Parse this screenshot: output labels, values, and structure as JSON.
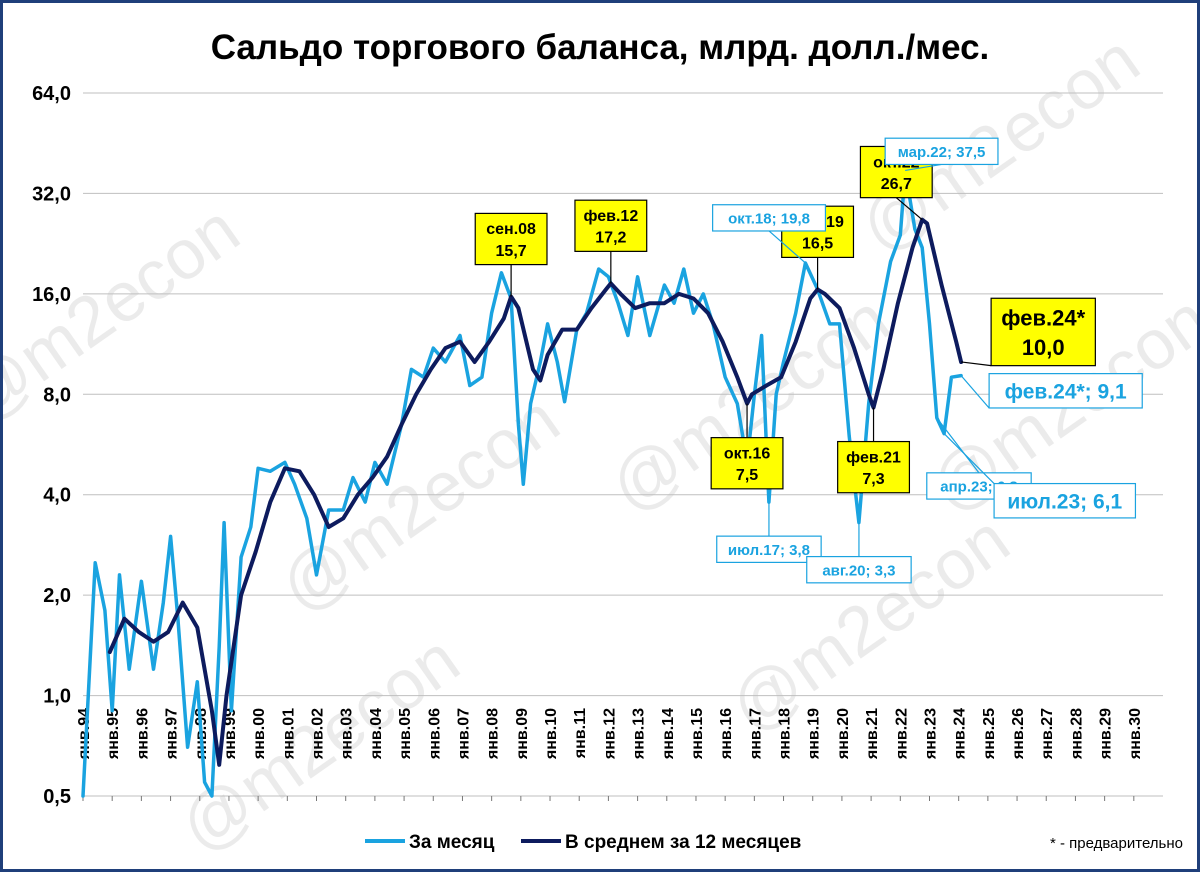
{
  "chart_data": {
    "type": "line",
    "title": "Сальдо торгового баланса, млрд. долл./мес.",
    "y_scale": "log2",
    "ylim": [
      0.5,
      64.0
    ],
    "y_ticks": [
      "0,5",
      "1,0",
      "2,0",
      "4,0",
      "8,0",
      "16,0",
      "32,0",
      "64,0"
    ],
    "x_ticks": [
      "янв.94",
      "янв.95",
      "янв.96",
      "янв.97",
      "янв.98",
      "янв.99",
      "янв.00",
      "янв.01",
      "янв.02",
      "янв.03",
      "янв.04",
      "янв.05",
      "янв.06",
      "янв.07",
      "янв.08",
      "янв.09",
      "янв.10",
      "янв.11",
      "янв.12",
      "янв.13",
      "янв.14",
      "янв.15",
      "янв.16",
      "янв.17",
      "янв.18",
      "янв.19",
      "янв.20",
      "янв.21",
      "янв.22",
      "янв.23",
      "янв.24",
      "янв.25",
      "янв.26",
      "янв.27",
      "янв.28",
      "янв.29",
      "янв.30"
    ],
    "x_range": [
      "1994-01",
      "2030-12"
    ],
    "grid": "horizontal",
    "legend_position": "bottom",
    "series": [
      {
        "name": "За месяц",
        "color": "#1aa3e0",
        "points": [
          [
            "1994-01",
            0.5
          ],
          [
            "1994-06",
            2.5
          ],
          [
            "1994-10",
            1.8
          ],
          [
            "1995-01",
            0.9
          ],
          [
            "1995-04",
            2.3
          ],
          [
            "1995-08",
            1.2
          ],
          [
            "1996-01",
            2.2
          ],
          [
            "1996-06",
            1.2
          ],
          [
            "1996-10",
            1.9
          ],
          [
            "1997-01",
            3.0
          ],
          [
            "1997-04",
            1.7
          ],
          [
            "1997-08",
            0.7
          ],
          [
            "1997-12",
            1.1
          ],
          [
            "1998-03",
            0.55
          ],
          [
            "1998-06",
            0.5
          ],
          [
            "1998-09",
            1.4
          ],
          [
            "1998-11",
            3.3
          ],
          [
            "1999-02",
            0.9
          ],
          [
            "1999-06",
            2.6
          ],
          [
            "1999-10",
            3.2
          ],
          [
            "2000-01",
            4.8
          ],
          [
            "2000-06",
            4.7
          ],
          [
            "2000-12",
            5.0
          ],
          [
            "2001-04",
            4.3
          ],
          [
            "2001-09",
            3.4
          ],
          [
            "2002-01",
            2.3
          ],
          [
            "2002-06",
            3.6
          ],
          [
            "2002-12",
            3.6
          ],
          [
            "2003-04",
            4.5
          ],
          [
            "2003-09",
            3.8
          ],
          [
            "2004-01",
            5.0
          ],
          [
            "2004-06",
            4.3
          ],
          [
            "2004-12",
            6.5
          ],
          [
            "2005-04",
            9.5
          ],
          [
            "2005-09",
            9.0
          ],
          [
            "2006-01",
            11.0
          ],
          [
            "2006-06",
            10.0
          ],
          [
            "2006-12",
            12.0
          ],
          [
            "2007-04",
            8.5
          ],
          [
            "2007-09",
            9.0
          ],
          [
            "2008-01",
            14.0
          ],
          [
            "2008-05",
            18.5
          ],
          [
            "2008-09",
            15.5
          ],
          [
            "2008-12",
            6.5
          ],
          [
            "2009-02",
            4.3
          ],
          [
            "2009-05",
            7.5
          ],
          [
            "2009-09",
            10.0
          ],
          [
            "2009-12",
            13.0
          ],
          [
            "2010-04",
            10.0
          ],
          [
            "2010-07",
            7.6
          ],
          [
            "2010-12",
            12.5
          ],
          [
            "2011-04",
            14.0
          ],
          [
            "2011-09",
            19.0
          ],
          [
            "2012-01",
            18.0
          ],
          [
            "2012-05",
            15.0
          ],
          [
            "2012-09",
            12.0
          ],
          [
            "2013-01",
            18.0
          ],
          [
            "2013-06",
            12.0
          ],
          [
            "2013-12",
            17.0
          ],
          [
            "2014-04",
            15.0
          ],
          [
            "2014-08",
            19.0
          ],
          [
            "2014-12",
            14.0
          ],
          [
            "2015-04",
            16.0
          ],
          [
            "2015-08",
            13.0
          ],
          [
            "2016-01",
            9.0
          ],
          [
            "2016-06",
            7.5
          ],
          [
            "2016-10",
            5.0
          ],
          [
            "2017-01",
            8.0
          ],
          [
            "2017-04",
            12.0
          ],
          [
            "2017-07",
            3.8
          ],
          [
            "2017-10",
            8.0
          ],
          [
            "2018-01",
            10.0
          ],
          [
            "2018-06",
            14.0
          ],
          [
            "2018-10",
            19.8
          ],
          [
            "2019-03",
            16.5
          ],
          [
            "2019-08",
            13.0
          ],
          [
            "2019-12",
            13.0
          ],
          [
            "2020-04",
            6.0
          ],
          [
            "2020-08",
            3.3
          ],
          [
            "2020-12",
            7.5
          ],
          [
            "2021-04",
            13.0
          ],
          [
            "2021-09",
            20.0
          ],
          [
            "2022-01",
            24.0
          ],
          [
            "2022-03",
            37.5
          ],
          [
            "2022-07",
            25.0
          ],
          [
            "2022-10",
            22.0
          ],
          [
            "2023-01",
            13.0
          ],
          [
            "2023-04",
            6.8
          ],
          [
            "2023-07",
            6.1
          ],
          [
            "2023-10",
            9.0
          ],
          [
            "2024-02",
            9.1
          ]
        ]
      },
      {
        "name": "В среднем за 12 месяцев",
        "color": "#0d1b5e",
        "points": [
          [
            "1994-12",
            1.35
          ],
          [
            "1995-06",
            1.7
          ],
          [
            "1995-12",
            1.55
          ],
          [
            "1996-06",
            1.45
          ],
          [
            "1996-12",
            1.55
          ],
          [
            "1997-06",
            1.9
          ],
          [
            "1997-12",
            1.6
          ],
          [
            "1998-06",
            0.9
          ],
          [
            "1998-09",
            0.62
          ],
          [
            "1998-12",
            1.0
          ],
          [
            "1999-06",
            2.0
          ],
          [
            "1999-12",
            2.7
          ],
          [
            "2000-06",
            3.8
          ],
          [
            "2000-12",
            4.8
          ],
          [
            "2001-06",
            4.7
          ],
          [
            "2001-12",
            4.0
          ],
          [
            "2002-06",
            3.2
          ],
          [
            "2002-12",
            3.4
          ],
          [
            "2003-06",
            4.0
          ],
          [
            "2003-12",
            4.5
          ],
          [
            "2004-06",
            5.2
          ],
          [
            "2004-12",
            6.5
          ],
          [
            "2005-06",
            8.0
          ],
          [
            "2005-12",
            9.5
          ],
          [
            "2006-06",
            11.0
          ],
          [
            "2006-12",
            11.5
          ],
          [
            "2007-06",
            10.0
          ],
          [
            "2007-12",
            11.5
          ],
          [
            "2008-06",
            13.5
          ],
          [
            "2008-09",
            15.7
          ],
          [
            "2008-12",
            14.5
          ],
          [
            "2009-06",
            9.5
          ],
          [
            "2009-09",
            8.8
          ],
          [
            "2009-12",
            10.5
          ],
          [
            "2010-06",
            12.5
          ],
          [
            "2010-12",
            12.5
          ],
          [
            "2011-06",
            14.5
          ],
          [
            "2011-12",
            16.5
          ],
          [
            "2012-02",
            17.2
          ],
          [
            "2012-06",
            16.0
          ],
          [
            "2012-12",
            14.5
          ],
          [
            "2013-06",
            15.0
          ],
          [
            "2013-12",
            15.0
          ],
          [
            "2014-06",
            16.0
          ],
          [
            "2014-12",
            15.5
          ],
          [
            "2015-06",
            14.0
          ],
          [
            "2015-12",
            11.5
          ],
          [
            "2016-06",
            9.0
          ],
          [
            "2016-10",
            7.5
          ],
          [
            "2016-12",
            8.0
          ],
          [
            "2017-06",
            8.5
          ],
          [
            "2017-12",
            9.0
          ],
          [
            "2018-06",
            11.5
          ],
          [
            "2018-12",
            15.5
          ],
          [
            "2019-03",
            16.5
          ],
          [
            "2019-06",
            16.0
          ],
          [
            "2019-12",
            14.5
          ],
          [
            "2020-06",
            11.0
          ],
          [
            "2020-12",
            8.0
          ],
          [
            "2021-02",
            7.3
          ],
          [
            "2021-06",
            9.5
          ],
          [
            "2021-12",
            15.0
          ],
          [
            "2022-06",
            22.0
          ],
          [
            "2022-10",
            26.7
          ],
          [
            "2022-12",
            26.0
          ],
          [
            "2023-06",
            17.0
          ],
          [
            "2023-12",
            11.5
          ],
          [
            "2024-02",
            10.0
          ]
        ]
      }
    ],
    "annotations": [
      {
        "text": "сен.08\n15,7",
        "date": "2008-09",
        "value": 15.7,
        "style": "yellow",
        "pos": "above"
      },
      {
        "text": "фев.12\n17,2",
        "date": "2012-02",
        "value": 17.2,
        "style": "yellow",
        "pos": "above"
      },
      {
        "text": "мар.19\n16,5",
        "date": "2019-03",
        "value": 16.5,
        "style": "yellow",
        "pos": "above"
      },
      {
        "text": "окт.22\n26,7",
        "date": "2022-10",
        "value": 26.7,
        "style": "yellow",
        "pos": "above"
      },
      {
        "text": "окт.16\n7,5",
        "date": "2016-10",
        "value": 7.5,
        "style": "yellow",
        "pos": "below"
      },
      {
        "text": "фев.21\n7,3",
        "date": "2021-02",
        "value": 7.3,
        "style": "yellow",
        "pos": "below"
      },
      {
        "text": "фев.24*\n10,0",
        "date": "2024-02",
        "value": 10.0,
        "style": "yellow-big",
        "pos": "right"
      },
      {
        "text": "окт.18; 19,8",
        "date": "2018-10",
        "value": 19.8,
        "style": "blue",
        "pos": "above"
      },
      {
        "text": "мар.22; 37,5",
        "date": "2022-03",
        "value": 37.5,
        "style": "blue",
        "pos": "above"
      },
      {
        "text": "июл.17; 3,8",
        "date": "2017-07",
        "value": 3.8,
        "style": "blue",
        "pos": "below"
      },
      {
        "text": "авг.20; 3,3",
        "date": "2020-08",
        "value": 3.3,
        "style": "blue",
        "pos": "below"
      },
      {
        "text": "апр.23; 6,8",
        "date": "2023-04",
        "value": 6.8,
        "style": "blue",
        "pos": "below"
      },
      {
        "text": "июл.23; 6,1",
        "date": "2023-07",
        "value": 6.1,
        "style": "blue-big",
        "pos": "below-right"
      },
      {
        "text": "фев.24*; 9,1",
        "date": "2024-02",
        "value": 9.1,
        "style": "blue-big",
        "pos": "right"
      }
    ],
    "footnote": "* - предварительно",
    "watermark": "@m2econ"
  }
}
